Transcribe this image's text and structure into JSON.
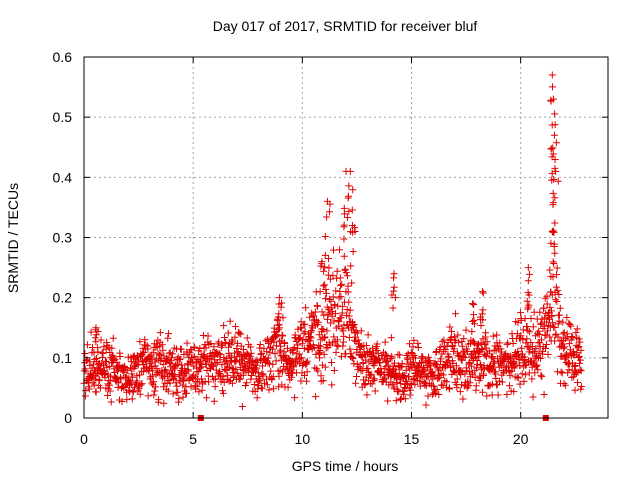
{
  "chart_data": {
    "type": "scatter",
    "title": "Day 017 of 2017, SRMTID for receiver bluf",
    "xlabel": "GPS time / hours",
    "ylabel": "SRMTID / TECUs",
    "xlim": [
      0,
      24
    ],
    "ylim": [
      0,
      0.6
    ],
    "xticks": [
      "0",
      "5",
      "10",
      "15",
      "20"
    ],
    "yticks": [
      "0",
      "0.1",
      "0.2",
      "0.3",
      "0.4",
      "0.5",
      "0.6"
    ],
    "xtick_values": [
      0,
      5,
      10,
      15,
      20
    ],
    "ytick_values": [
      0,
      0.1,
      0.2,
      0.3,
      0.4,
      0.5,
      0.6
    ],
    "grid": true,
    "marker": "+",
    "color": "#e00000",
    "gap_markers_x": [
      5.35,
      21.15
    ],
    "series": [
      {
        "name": "SRMTID",
        "baseline": [
          [
            0.0,
            0.075
          ],
          [
            0.5,
            0.09
          ],
          [
            1.0,
            0.085
          ],
          [
            1.5,
            0.07
          ],
          [
            2.0,
            0.065
          ],
          [
            2.5,
            0.08
          ],
          [
            3.0,
            0.085
          ],
          [
            3.5,
            0.085
          ],
          [
            4.0,
            0.08
          ],
          [
            4.5,
            0.08
          ],
          [
            5.0,
            0.08
          ],
          [
            5.5,
            0.085
          ],
          [
            6.0,
            0.09
          ],
          [
            6.5,
            0.09
          ],
          [
            7.0,
            0.095
          ],
          [
            7.5,
            0.085
          ],
          [
            8.0,
            0.085
          ],
          [
            8.5,
            0.1
          ],
          [
            9.0,
            0.11
          ],
          [
            9.5,
            0.09
          ],
          [
            10.0,
            0.11
          ],
          [
            10.5,
            0.13
          ],
          [
            11.0,
            0.15
          ],
          [
            11.5,
            0.17
          ],
          [
            12.0,
            0.18
          ],
          [
            12.5,
            0.11
          ],
          [
            13.0,
            0.09
          ],
          [
            13.5,
            0.085
          ],
          [
            14.0,
            0.08
          ],
          [
            14.5,
            0.07
          ],
          [
            15.0,
            0.08
          ],
          [
            15.5,
            0.075
          ],
          [
            16.0,
            0.07
          ],
          [
            16.5,
            0.09
          ],
          [
            17.0,
            0.1
          ],
          [
            17.5,
            0.085
          ],
          [
            18.0,
            0.1
          ],
          [
            18.5,
            0.085
          ],
          [
            19.0,
            0.09
          ],
          [
            19.5,
            0.085
          ],
          [
            20.0,
            0.12
          ],
          [
            20.5,
            0.1
          ],
          [
            21.0,
            0.12
          ],
          [
            21.5,
            0.2
          ],
          [
            22.0,
            0.11
          ],
          [
            22.5,
            0.1
          ],
          [
            22.8,
            0.09
          ]
        ],
        "notable_points": [
          [
            0.55,
            0.15
          ],
          [
            8.95,
            0.2
          ],
          [
            10.9,
            0.26
          ],
          [
            11.15,
            0.36
          ],
          [
            12.0,
            0.41
          ],
          [
            12.2,
            0.41
          ],
          [
            12.3,
            0.32
          ],
          [
            14.2,
            0.24
          ],
          [
            17.8,
            0.19
          ],
          [
            18.25,
            0.21
          ],
          [
            20.35,
            0.25
          ],
          [
            21.45,
            0.57
          ],
          [
            21.5,
            0.53
          ],
          [
            21.55,
            0.47
          ],
          [
            21.6,
            0.41
          ],
          [
            21.45,
            0.31
          ]
        ]
      }
    ]
  }
}
